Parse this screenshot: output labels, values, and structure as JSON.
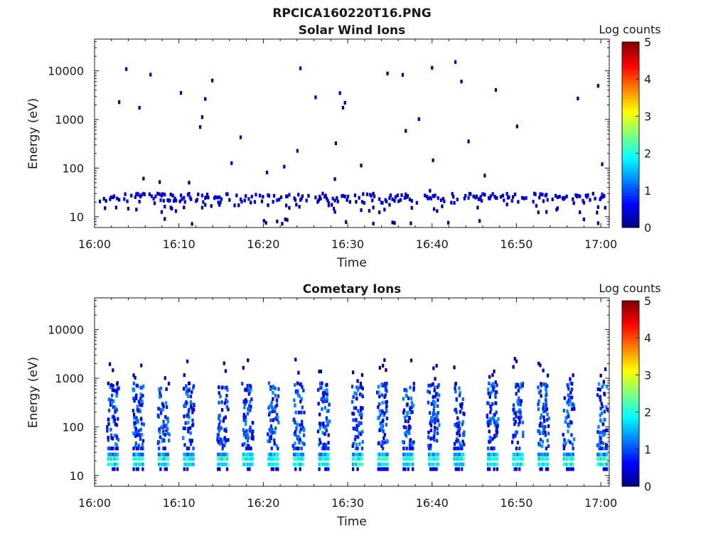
{
  "figure": {
    "title": "RPCICA160220T16.PNG"
  },
  "chart_data": [
    {
      "type": "heatmap",
      "title": "Solar Wind Ions",
      "xlabel": "Time",
      "ylabel": "Energy (eV)",
      "x_ticks": [
        "16:00",
        "16:10",
        "16:20",
        "16:30",
        "16:40",
        "16:50",
        "17:00"
      ],
      "xlim": [
        "16:00",
        "17:01"
      ],
      "y_scale": "log",
      "y_ticks": [
        10,
        100,
        1000,
        10000
      ],
      "y_tick_labels": [
        "10",
        "100",
        "1000",
        "10000"
      ],
      "ylim": [
        6,
        45000
      ],
      "colorbar": {
        "label": "Log counts",
        "ticks": [
          "0",
          "1",
          "2",
          "3",
          "4",
          "5"
        ],
        "range": [
          0,
          5
        ],
        "colormap": "jet"
      },
      "description_of_values": "sparse low counts (mostly 0-1 log counts) concentrated near 20-30 eV, scattered isolated points up to ~10000 eV",
      "bands": [
        {
          "label": "low-energy band",
          "energy_range_eV": [
            15,
            30
          ],
          "typical_log_counts": 0.5
        },
        {
          "label": "scattered",
          "energy_range_eV": [
            30,
            15000
          ],
          "typical_log_counts": 0.2
        }
      ]
    },
    {
      "type": "heatmap",
      "title": "Cometary Ions",
      "xlabel": "Time",
      "ylabel": "Energy (eV)",
      "x_ticks": [
        "16:00",
        "16:10",
        "16:20",
        "16:30",
        "16:40",
        "16:50",
        "17:00"
      ],
      "xlim": [
        "16:00",
        "17:01"
      ],
      "y_scale": "log",
      "y_ticks": [
        10,
        100,
        1000,
        10000
      ],
      "y_tick_labels": [
        "10",
        "100",
        "1000",
        "10000"
      ],
      "ylim": [
        6,
        45000
      ],
      "colorbar": {
        "label": "Log counts",
        "ticks": [
          "0",
          "1",
          "2",
          "3",
          "4",
          "5"
        ],
        "range": [
          0,
          5
        ],
        "colormap": "jet"
      },
      "description_of_values": "periodic vertical bursts about every 3.2 minutes; strong signal (~1.5-2 log counts) at 15-30 eV, weaker (~0.5-1) from 30 to 700 eV, sparse up to ~2500 eV",
      "burst_times": [
        "16:02",
        "16:05",
        "16:08",
        "16:11",
        "16:15",
        "16:18",
        "16:21",
        "16:24",
        "16:27",
        "16:31",
        "16:34",
        "16:37",
        "16:40",
        "16:43",
        "16:47",
        "16:50",
        "16:53",
        "16:56",
        "17:00"
      ],
      "bands": [
        {
          "label": "core",
          "energy_range_eV": [
            15,
            30
          ],
          "typical_log_counts": 1.8
        },
        {
          "label": "spread",
          "energy_range_eV": [
            30,
            700
          ],
          "typical_log_counts": 0.8
        },
        {
          "label": "high tail",
          "energy_range_eV": [
            700,
            2500
          ],
          "typical_log_counts": 0.2
        }
      ]
    }
  ]
}
